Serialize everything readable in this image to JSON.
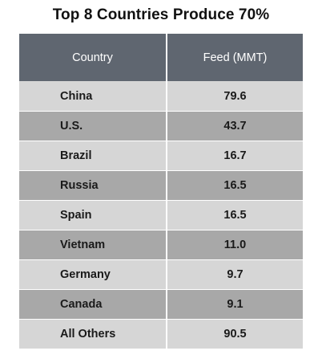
{
  "title": "Top 8 Countries Produce 70%",
  "chart_data": {
    "type": "table",
    "title": "Top 8 Countries Produce 70%",
    "columns": [
      "Country",
      "Feed (MMT)"
    ],
    "rows": [
      {
        "country": "China",
        "feed": "79.6"
      },
      {
        "country": "U.S.",
        "feed": "43.7"
      },
      {
        "country": "Brazil",
        "feed": "16.7"
      },
      {
        "country": "Russia",
        "feed": "16.5"
      },
      {
        "country": "Spain",
        "feed": "16.5"
      },
      {
        "country": "Vietnam",
        "feed": "11.0"
      },
      {
        "country": "Germany",
        "feed": "9.7"
      },
      {
        "country": "Canada",
        "feed": "9.1"
      },
      {
        "country": "All Others",
        "feed": "90.5"
      }
    ]
  },
  "colors": {
    "header_bg": "#5f6670",
    "row_light": "#d6d6d6",
    "row_dark": "#a8a8a8"
  }
}
